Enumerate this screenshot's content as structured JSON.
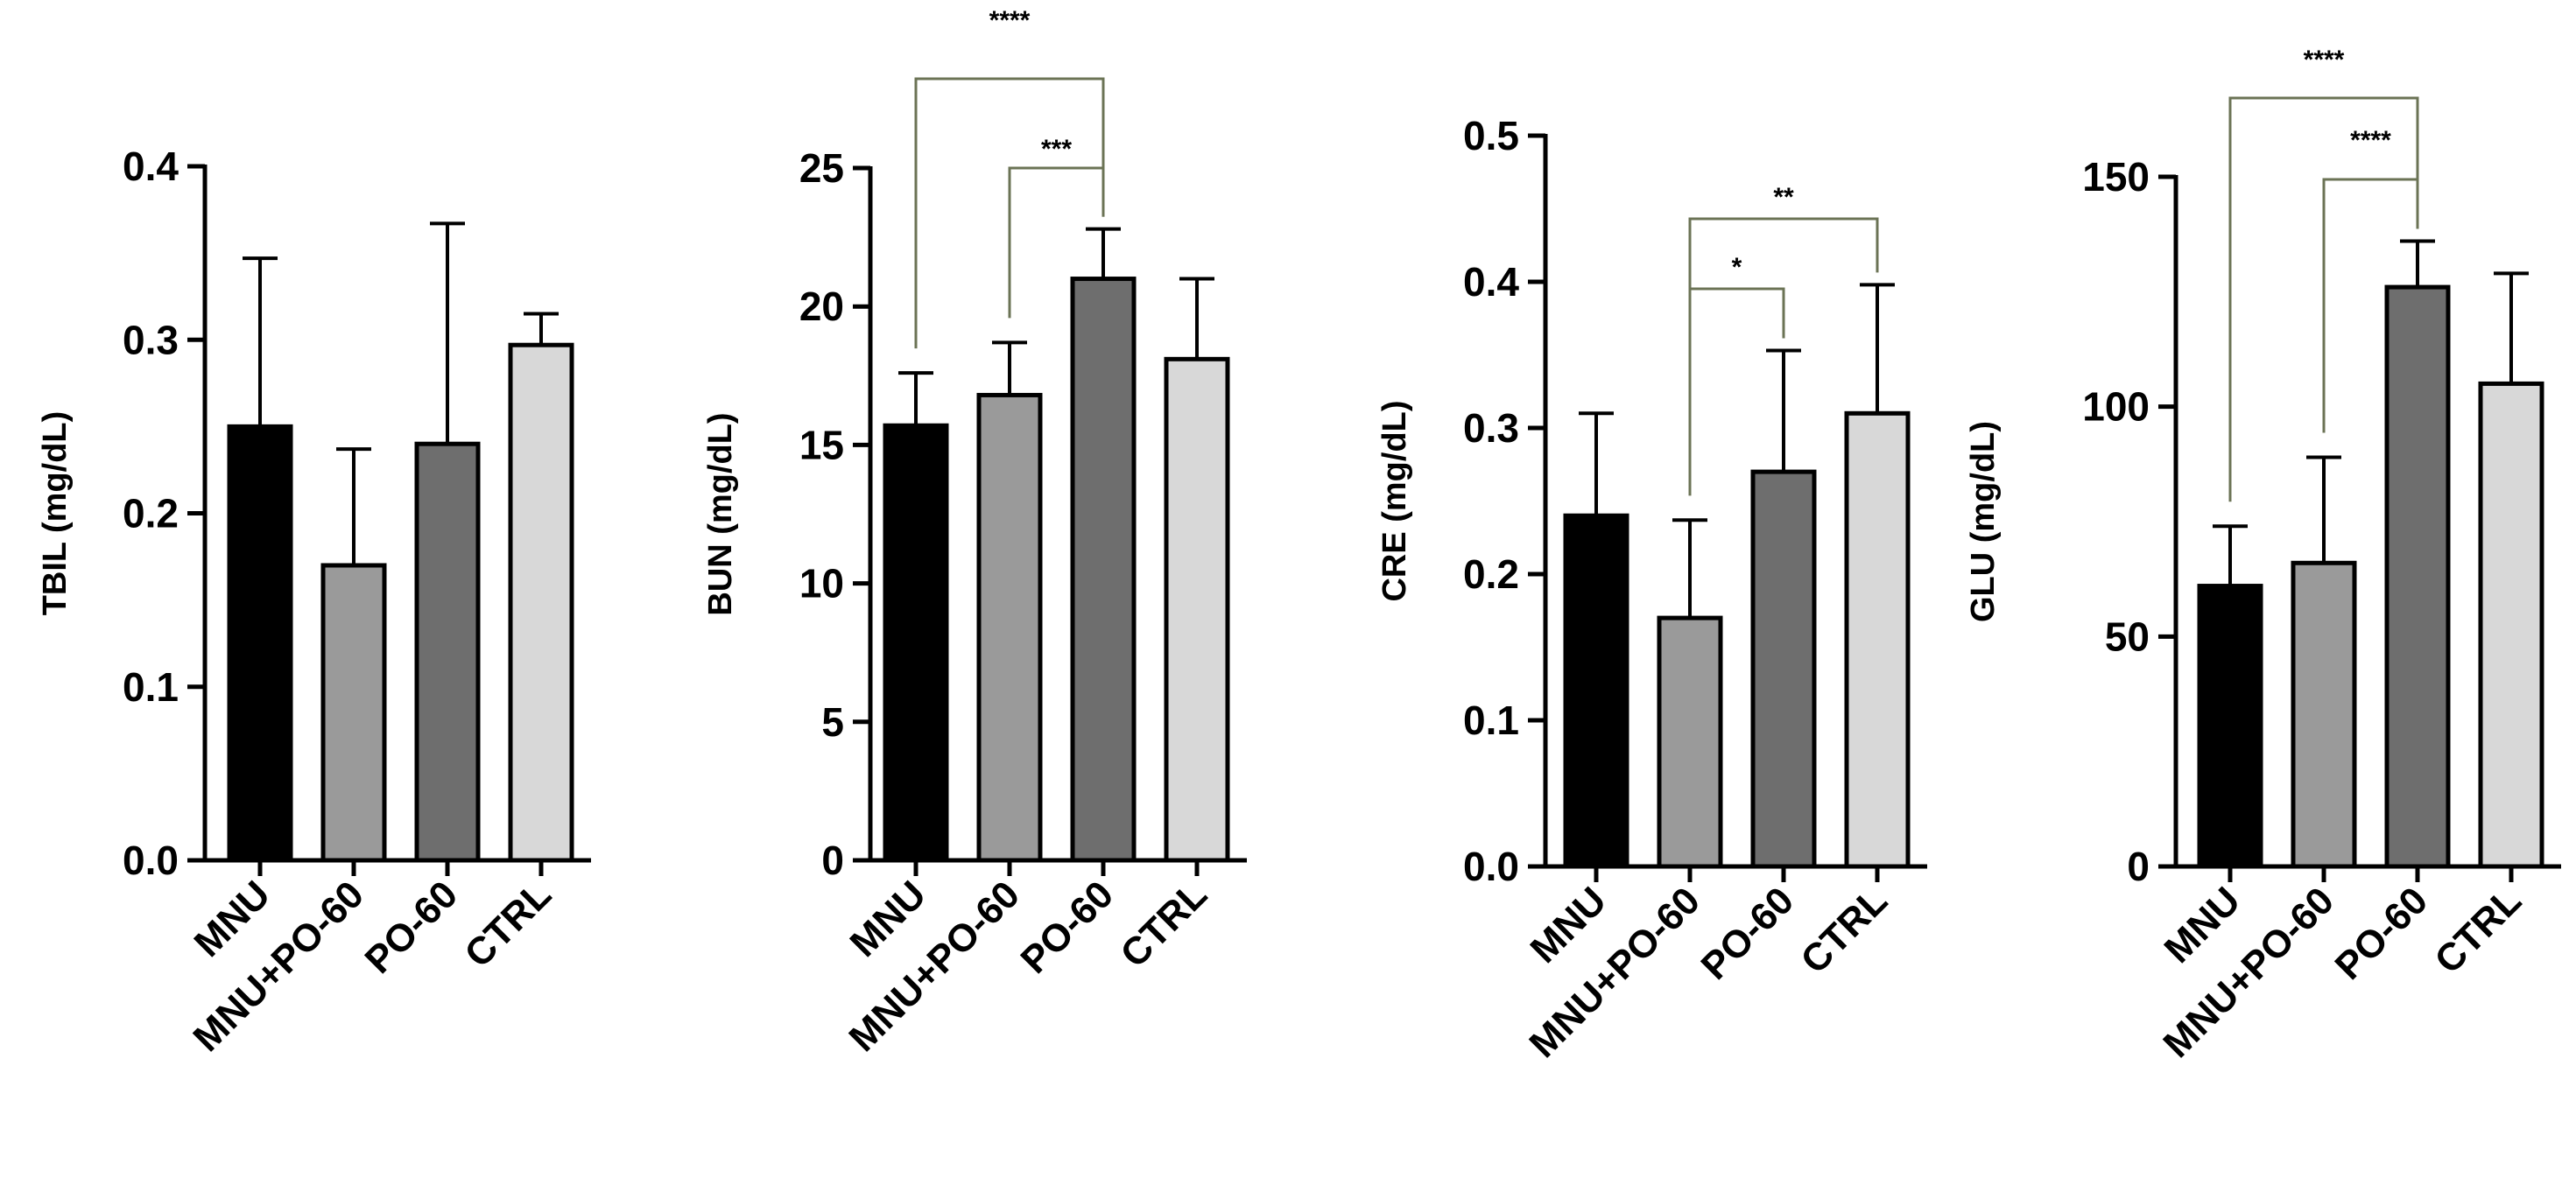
{
  "chart_data": [
    {
      "type": "bar",
      "categories": [
        "MNU",
        "MNU+PO-60",
        "PO-60",
        "CTRL"
      ],
      "values": [
        0.25,
        0.17,
        0.24,
        0.297
      ],
      "errors": [
        0.097,
        0.067,
        0.127,
        0.018
      ],
      "colors": [
        "#000000",
        "#9a9a9a",
        "#6e6e6e",
        "#d8d8d8"
      ],
      "title": "",
      "xlabel": "",
      "ylabel": "TBIL (mg/dL)",
      "ylim": [
        0,
        0.4
      ],
      "yticks": [
        0.0,
        0.1,
        0.2,
        0.3,
        0.4
      ],
      "ytick_labels": [
        "0.0",
        "0.1",
        "0.2",
        "0.3",
        "0.4"
      ],
      "significance": []
    },
    {
      "type": "bar",
      "categories": [
        "MNU",
        "MNU+PO-60",
        "PO-60",
        "CTRL"
      ],
      "values": [
        15.7,
        16.8,
        21.0,
        18.1
      ],
      "errors": [
        1.9,
        1.9,
        1.8,
        2.9
      ],
      "colors": [
        "#000000",
        "#9a9a9a",
        "#6e6e6e",
        "#d8d8d8"
      ],
      "title": "",
      "xlabel": "",
      "ylabel": "BUN (mg/dL)",
      "ylim": [
        0,
        25
      ],
      "yticks": [
        0,
        5,
        10,
        15,
        20,
        25
      ],
      "ytick_labels": [
        "0",
        "5",
        "10",
        "15",
        "20",
        "25"
      ],
      "significance": [
        {
          "from": 0,
          "to": 2,
          "label": "****"
        },
        {
          "from": 1,
          "to": 2,
          "label": "***"
        }
      ]
    },
    {
      "type": "bar",
      "categories": [
        "MNU",
        "MNU+PO-60",
        "PO-60",
        "CTRL"
      ],
      "values": [
        0.24,
        0.17,
        0.27,
        0.31
      ],
      "errors": [
        0.07,
        0.067,
        0.083,
        0.088
      ],
      "colors": [
        "#000000",
        "#9a9a9a",
        "#6e6e6e",
        "#d8d8d8"
      ],
      "title": "",
      "xlabel": "",
      "ylabel": "CRE (mg/dL)",
      "ylim": [
        0,
        0.5
      ],
      "yticks": [
        0.0,
        0.1,
        0.2,
        0.3,
        0.4,
        0.5
      ],
      "ytick_labels": [
        "0.0",
        "0.1",
        "0.2",
        "0.3",
        "0.4",
        "0.5"
      ],
      "significance": [
        {
          "from": 1,
          "to": 3,
          "label": "**"
        },
        {
          "from": 1,
          "to": 2,
          "label": "*"
        }
      ]
    },
    {
      "type": "bar",
      "categories": [
        "MNU",
        "MNU+PO-60",
        "PO-60",
        "CTRL"
      ],
      "values": [
        61,
        66,
        126,
        105
      ],
      "errors": [
        13,
        23,
        10,
        24
      ],
      "colors": [
        "#000000",
        "#9a9a9a",
        "#6e6e6e",
        "#d8d8d8"
      ],
      "title": "",
      "xlabel": "",
      "ylabel": "GLU (mg/dL)",
      "ylim": [
        0,
        150
      ],
      "yticks": [
        0,
        50,
        100,
        150
      ],
      "ytick_labels": [
        "0",
        "50",
        "100",
        "150"
      ],
      "significance": [
        {
          "from": 0,
          "to": 2,
          "label": "****"
        },
        {
          "from": 1,
          "to": 2,
          "label": "****"
        }
      ]
    }
  ]
}
